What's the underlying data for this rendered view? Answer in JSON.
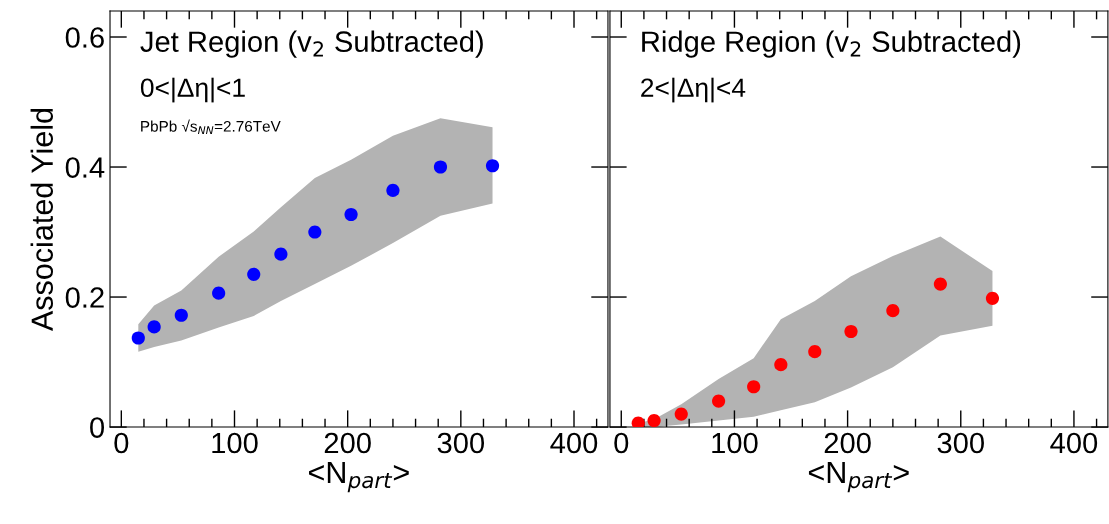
{
  "chart_data": [
    {
      "type": "scatter",
      "xlabel": "<N$_{part}$>",
      "ylabel": "Associated Yield",
      "annotations": [
        "Jet Region (v$_{2}$ Subtracted)",
        "0<|Δη|<1",
        "PbPb √s$_{NN}$=2.76TeV"
      ],
      "x": [
        15,
        29,
        53,
        86,
        117,
        141,
        171,
        203,
        240,
        282,
        328
      ],
      "series": [
        {
          "color": "#0000ff",
          "values": [
            0.137,
            0.154,
            0.172,
            0.206,
            0.235,
            0.266,
            0.3,
            0.327,
            0.364,
            0.4,
            0.402
          ],
          "lower": [
            0.116,
            0.123,
            0.133,
            0.153,
            0.171,
            0.194,
            0.22,
            0.248,
            0.283,
            0.325,
            0.344
          ],
          "upper": [
            0.158,
            0.187,
            0.21,
            0.262,
            0.301,
            0.338,
            0.383,
            0.411,
            0.448,
            0.475,
            0.461
          ]
        }
      ],
      "xlim": [
        -10,
        430
      ],
      "ylim": [
        0,
        0.64
      ],
      "xticks": [
        0,
        100,
        200,
        300,
        400
      ],
      "yticks": [
        0,
        0.2,
        0.4,
        0.6
      ],
      "grid": false,
      "legend": false,
      "marker": "circle"
    },
    {
      "type": "scatter",
      "xlabel": "<N$_{part}$>",
      "annotations": [
        "Ridge Region (v$_{2}$ Subtracted)",
        "2<|Δη|<4"
      ],
      "x": [
        15,
        29,
        53,
        86,
        117,
        141,
        171,
        203,
        240,
        282,
        328
      ],
      "series": [
        {
          "color": "#ff0000",
          "values": [
            0.006,
            0.01,
            0.02,
            0.04,
            0.062,
            0.096,
            0.116,
            0.147,
            0.179,
            0.22,
            0.198
          ],
          "lower": [
            0.0,
            0.0,
            0.004,
            0.01,
            0.016,
            0.026,
            0.038,
            0.061,
            0.092,
            0.141,
            0.156
          ],
          "upper": [
            0.006,
            0.012,
            0.035,
            0.074,
            0.106,
            0.166,
            0.194,
            0.232,
            0.263,
            0.293,
            0.24
          ]
        }
      ],
      "xlim": [
        -10,
        430
      ],
      "ylim": [
        0,
        0.64
      ],
      "xticks": [
        0,
        100,
        200,
        300,
        400
      ],
      "yticks": [
        0,
        0.2,
        0.4,
        0.6
      ],
      "tick_labels": "x",
      "grid": false,
      "legend": false,
      "marker": "circle"
    }
  ]
}
